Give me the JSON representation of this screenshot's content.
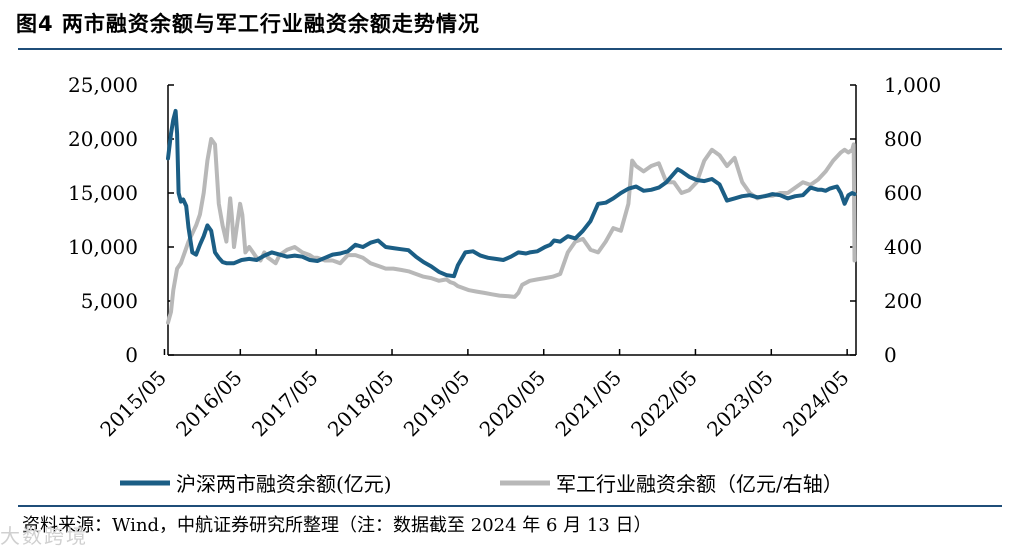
{
  "figure": {
    "title": "图4  两市融资余额与军工行业融资余额走势情况",
    "source": "资料来源：Wind，中航证券研究所整理（注：数据截至 2024 年 6 月 13 日）",
    "watermark": "大数跨境"
  },
  "chart_data": {
    "type": "line",
    "title": "两市融资余额与军工行业融资余额走势情况",
    "x_tick_labels": [
      "2015/05",
      "2016/05",
      "2017/05",
      "2018/05",
      "2019/05",
      "2020/05",
      "2021/05",
      "2022/05",
      "2023/05",
      "2024/05"
    ],
    "xlim": [
      2015.38,
      2024.45
    ],
    "y_left": {
      "ylim": [
        0,
        25000
      ],
      "ticks": [
        "0",
        "5,000",
        "10,000",
        "15,000",
        "20,000",
        "25,000"
      ],
      "tick_values": [
        0,
        5000,
        10000,
        15000,
        20000,
        25000
      ]
    },
    "y_right": {
      "ylim": [
        0,
        1000
      ],
      "ticks": [
        "0",
        "200",
        "400",
        "600",
        "800",
        "1,000"
      ],
      "tick_values": [
        0,
        200,
        400,
        600,
        800,
        1000
      ]
    },
    "legend_placement": "bottom",
    "grid": false,
    "series": [
      {
        "name": "沪深两市融资余额(亿元)",
        "axis": "left",
        "color": "#1b5e85",
        "x": [
          2015.38,
          2015.42,
          2015.45,
          2015.48,
          2015.5,
          2015.52,
          2015.55,
          2015.58,
          2015.62,
          2015.65,
          2015.7,
          2015.75,
          2015.8,
          2015.85,
          2015.9,
          2015.95,
          2016.0,
          2016.05,
          2016.1,
          2016.15,
          2016.25,
          2016.35,
          2016.45,
          2016.55,
          2016.65,
          2016.75,
          2016.85,
          2016.95,
          2017.05,
          2017.15,
          2017.25,
          2017.35,
          2017.45,
          2017.55,
          2017.65,
          2017.75,
          2017.85,
          2017.95,
          2018.05,
          2018.15,
          2018.25,
          2018.35,
          2018.45,
          2018.55,
          2018.65,
          2018.75,
          2018.85,
          2018.95,
          2019.05,
          2019.15,
          2019.2,
          2019.3,
          2019.4,
          2019.5,
          2019.6,
          2019.7,
          2019.8,
          2019.9,
          2020.0,
          2020.1,
          2020.15,
          2020.25,
          2020.35,
          2020.42,
          2020.47,
          2020.55,
          2020.65,
          2020.75,
          2020.85,
          2020.95,
          2021.05,
          2021.15,
          2021.25,
          2021.35,
          2021.45,
          2021.55,
          2021.65,
          2021.75,
          2021.85,
          2021.95,
          2022.05,
          2022.1,
          2022.15,
          2022.25,
          2022.35,
          2022.45,
          2022.55,
          2022.65,
          2022.75,
          2022.85,
          2022.95,
          2023.05,
          2023.15,
          2023.25,
          2023.35,
          2023.45,
          2023.55,
          2023.65,
          2023.75,
          2023.85,
          2023.95,
          2024.0,
          2024.05,
          2024.1,
          2024.15,
          2024.2,
          2024.25,
          2024.3,
          2024.35,
          2024.4,
          2024.43
        ],
        "y": [
          18200,
          20500,
          21800,
          22600,
          20500,
          15000,
          14200,
          14400,
          13800,
          11800,
          9500,
          9300,
          10200,
          11000,
          12000,
          11500,
          9500,
          9000,
          8600,
          8500,
          8500,
          8800,
          8900,
          8800,
          9200,
          9500,
          9300,
          9100,
          9200,
          9100,
          8800,
          8700,
          9000,
          9300,
          9400,
          9600,
          10200,
          10000,
          10400,
          10600,
          10000,
          9900,
          9800,
          9700,
          9100,
          8600,
          8200,
          7700,
          7400,
          7300,
          8300,
          9500,
          9600,
          9200,
          9000,
          8900,
          8800,
          9100,
          9500,
          9400,
          9500,
          9600,
          10000,
          10200,
          10600,
          10500,
          11000,
          10800,
          11500,
          12400,
          14000,
          14100,
          14500,
          15000,
          15400,
          15600,
          15200,
          15300,
          15500,
          16000,
          16800,
          17200,
          17000,
          16500,
          16200,
          16100,
          16300,
          15800,
          14300,
          14500,
          14700,
          14800,
          14600,
          14700,
          14900,
          14800,
          14500,
          14700,
          14800,
          15500,
          15300,
          15300,
          15200,
          15400,
          15500,
          15600,
          15000,
          14000,
          14800,
          15000,
          14900
        ]
      },
      {
        "name": "军工行业融资余额（亿元/右轴）",
        "axis": "right",
        "color": "#b8b8b8",
        "x": [
          2015.38,
          2015.42,
          2015.45,
          2015.5,
          2015.55,
          2015.6,
          2015.65,
          2015.7,
          2015.75,
          2015.8,
          2015.85,
          2015.9,
          2015.95,
          2016.0,
          2016.05,
          2016.1,
          2016.15,
          2016.2,
          2016.22,
          2016.25,
          2016.3,
          2016.33,
          2016.36,
          2016.4,
          2016.45,
          2016.5,
          2016.55,
          2016.6,
          2016.65,
          2016.7,
          2016.75,
          2016.8,
          2016.85,
          2016.95,
          2017.05,
          2017.15,
          2017.25,
          2017.3,
          2017.35,
          2017.45,
          2017.55,
          2017.65,
          2017.75,
          2017.85,
          2017.95,
          2018.05,
          2018.15,
          2018.25,
          2018.35,
          2018.45,
          2018.55,
          2018.65,
          2018.75,
          2018.85,
          2018.95,
          2019.05,
          2019.1,
          2019.15,
          2019.2,
          2019.25,
          2019.35,
          2019.45,
          2019.55,
          2019.65,
          2019.75,
          2019.85,
          2019.95,
          2020.0,
          2020.05,
          2020.15,
          2020.25,
          2020.35,
          2020.45,
          2020.55,
          2020.65,
          2020.75,
          2020.85,
          2020.95,
          2021.05,
          2021.15,
          2021.25,
          2021.35,
          2021.45,
          2021.5,
          2021.55,
          2021.65,
          2021.75,
          2021.85,
          2021.95,
          2022.05,
          2022.15,
          2022.25,
          2022.35,
          2022.45,
          2022.55,
          2022.65,
          2022.75,
          2022.85,
          2022.95,
          2023.05,
          2023.15,
          2023.25,
          2023.35,
          2023.45,
          2023.55,
          2023.65,
          2023.75,
          2023.85,
          2023.95,
          2024.05,
          2024.15,
          2024.25,
          2024.3,
          2024.35,
          2024.4,
          2024.42,
          2024.43
        ],
        "y": [
          120,
          160,
          240,
          320,
          340,
          380,
          420,
          450,
          480,
          520,
          600,
          720,
          800,
          780,
          560,
          480,
          420,
          580,
          520,
          400,
          500,
          560,
          520,
          380,
          400,
          380,
          360,
          350,
          380,
          360,
          350,
          340,
          370,
          390,
          400,
          380,
          370,
          360,
          360,
          350,
          350,
          340,
          370,
          370,
          360,
          340,
          330,
          320,
          320,
          315,
          310,
          300,
          290,
          285,
          275,
          280,
          270,
          265,
          255,
          250,
          240,
          235,
          230,
          225,
          220,
          218,
          215,
          230,
          260,
          275,
          280,
          285,
          290,
          300,
          380,
          420,
          430,
          390,
          380,
          420,
          470,
          460,
          560,
          720,
          700,
          680,
          700,
          710,
          640,
          640,
          600,
          610,
          640,
          720,
          760,
          740,
          700,
          730,
          640,
          600,
          580,
          590,
          590,
          600,
          600,
          620,
          640,
          630,
          650,
          680,
          720,
          750,
          760,
          750,
          760,
          780,
          350
        ]
      }
    ]
  }
}
